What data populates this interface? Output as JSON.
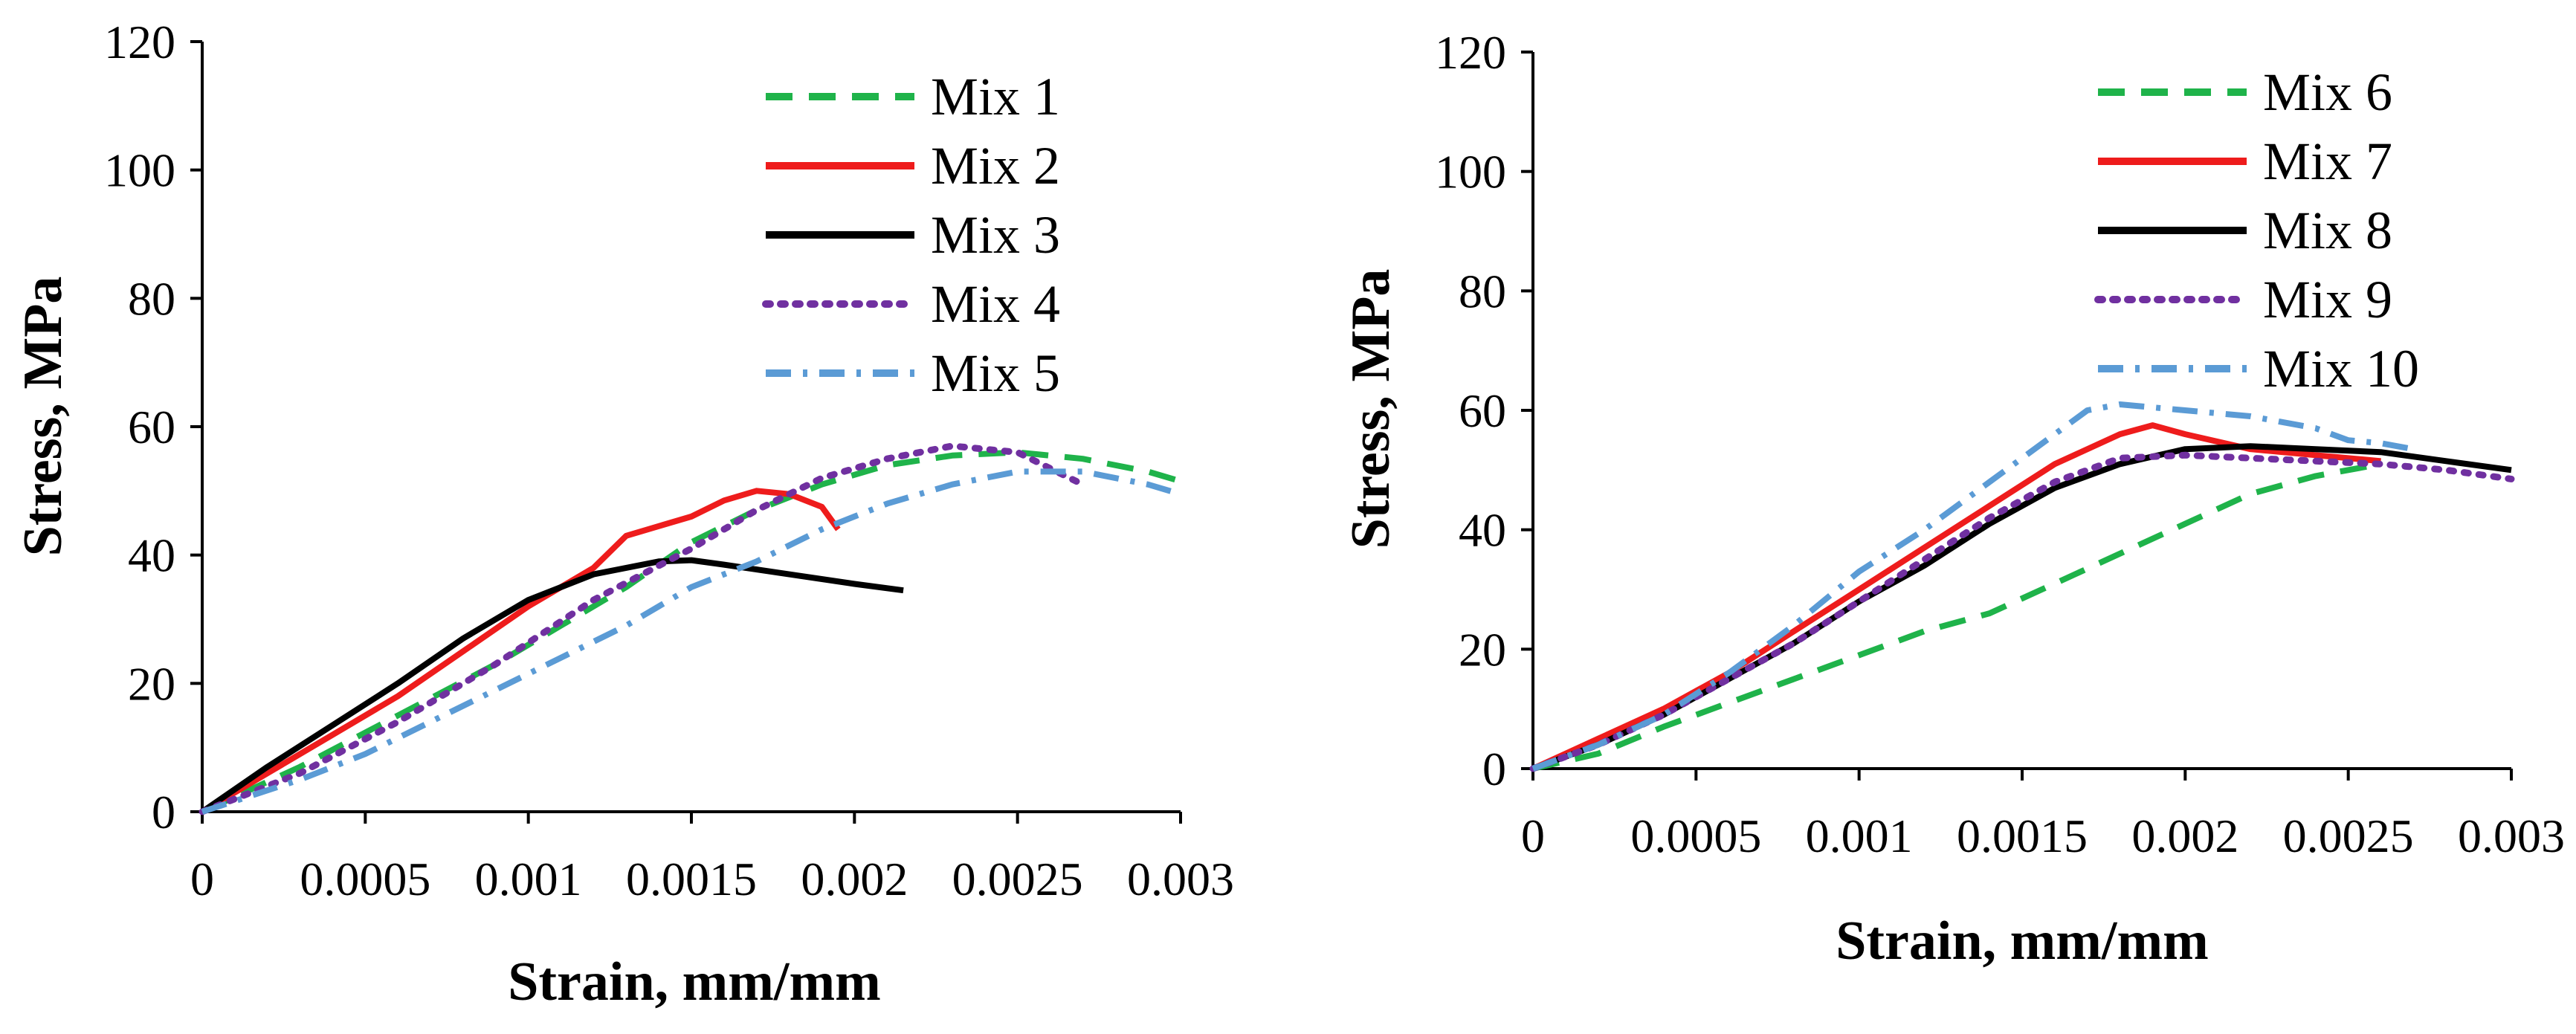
{
  "chart_data": [
    {
      "type": "line",
      "title": "",
      "xlabel": "Strain, mm/mm",
      "ylabel": "Stress, MPa",
      "xlim": [
        0,
        0.003
      ],
      "ylim": [
        0,
        120
      ],
      "xticks": [
        "0",
        "0.0005",
        "0.001",
        "0.0015",
        "0.002",
        "0.0025",
        "0.003"
      ],
      "yticks": [
        "0",
        "20",
        "40",
        "60",
        "80",
        "100",
        "120"
      ],
      "legend_position": "top-right",
      "grid": false,
      "series": [
        {
          "name": "Mix 1",
          "color": "#1fb34a",
          "style": "dashed",
          "x": [
            0,
            0.0003,
            0.0006,
            0.0009,
            0.0011,
            0.0013,
            0.0015,
            0.0017,
            0.0019,
            0.0021,
            0.0023,
            0.0025,
            0.0027,
            0.0029,
            0.003
          ],
          "y": [
            0,
            7,
            15,
            23,
            29,
            35,
            42,
            47,
            51,
            54,
            55.5,
            56,
            55,
            53,
            51.5
          ]
        },
        {
          "name": "Mix 2",
          "color": "#ee1c1c",
          "style": "solid",
          "x": [
            0,
            0.0002,
            0.0004,
            0.0006,
            0.0008,
            0.001,
            0.0012,
            0.0013,
            0.0014,
            0.0015,
            0.0016,
            0.0017,
            0.0018,
            0.0019,
            0.00195
          ],
          "y": [
            0,
            6,
            12,
            18,
            25,
            32,
            38,
            43,
            44.5,
            46,
            48.5,
            50,
            49.5,
            47.5,
            44
          ]
        },
        {
          "name": "Mix 3",
          "color": "#000000",
          "style": "solid",
          "x": [
            0,
            0.0002,
            0.0004,
            0.0006,
            0.0008,
            0.001,
            0.0012,
            0.0014,
            0.0015,
            0.0016,
            0.0018,
            0.002,
            0.00215
          ],
          "y": [
            0,
            7,
            13.5,
            20,
            27,
            33,
            37,
            39,
            39.2,
            38.5,
            37,
            35.5,
            34.5
          ]
        },
        {
          "name": "Mix 4",
          "color": "#7030a0",
          "style": "dotted",
          "x": [
            0,
            0.0003,
            0.0006,
            0.0009,
            0.0012,
            0.0015,
            0.0017,
            0.0019,
            0.0021,
            0.0023,
            0.0025,
            0.0027
          ],
          "y": [
            0,
            6,
            14,
            23,
            33,
            41,
            47,
            52,
            55,
            57,
            56,
            51
          ]
        },
        {
          "name": "Mix 5",
          "color": "#5b9bd5",
          "style": "dashdot",
          "x": [
            0,
            0.0003,
            0.0005,
            0.0007,
            0.0009,
            0.0011,
            0.0013,
            0.0015,
            0.0017,
            0.0019,
            0.0021,
            0.0023,
            0.0025,
            0.0027,
            0.0029,
            0.003
          ],
          "y": [
            0,
            5,
            9,
            14,
            19,
            24,
            29,
            35,
            39,
            44,
            48,
            51,
            53,
            53,
            51,
            49.5
          ]
        }
      ]
    },
    {
      "type": "line",
      "title": "",
      "xlabel": "Strain, mm/mm",
      "ylabel": "Stress, MPa",
      "xlim": [
        0,
        0.003
      ],
      "ylim": [
        0,
        120
      ],
      "xticks": [
        "0",
        "0.0005",
        "0.001",
        "0.0015",
        "0.002",
        "0.0025",
        "0.003"
      ],
      "yticks": [
        "0",
        "20",
        "40",
        "60",
        "80",
        "100",
        "120"
      ],
      "legend_position": "top-right",
      "grid": false,
      "series": [
        {
          "name": "Mix 6",
          "color": "#1fb34a",
          "style": "dashed",
          "x": [
            0,
            0.0002,
            0.0004,
            0.0006,
            0.0008,
            0.001,
            0.0012,
            0.0014,
            0.0016,
            0.0018,
            0.002,
            0.0022,
            0.0024,
            0.0026
          ],
          "y": [
            0,
            2.5,
            7,
            11,
            15,
            19,
            23,
            26,
            31,
            36,
            41,
            46,
            49,
            51
          ]
        },
        {
          "name": "Mix 7",
          "color": "#ee1c1c",
          "style": "solid",
          "x": [
            0,
            0.0002,
            0.0004,
            0.0006,
            0.0008,
            0.001,
            0.0012,
            0.0014,
            0.0016,
            0.0018,
            0.0019,
            0.002,
            0.0022,
            0.0024,
            0.0026
          ],
          "y": [
            0,
            5,
            10,
            16,
            23,
            30,
            37,
            44,
            51,
            56,
            57.5,
            56,
            53.5,
            52.5,
            51.5
          ]
        },
        {
          "name": "Mix 8",
          "color": "#000000",
          "style": "solid",
          "x": [
            0,
            0.0002,
            0.0004,
            0.0006,
            0.0008,
            0.001,
            0.0012,
            0.0014,
            0.0016,
            0.0018,
            0.002,
            0.0022,
            0.0024,
            0.0026,
            0.0028,
            0.003
          ],
          "y": [
            0,
            4,
            9,
            15,
            21,
            28,
            34,
            41,
            47,
            51,
            53.5,
            54,
            53.5,
            53,
            51.5,
            50
          ]
        },
        {
          "name": "Mix 9",
          "color": "#7030a0",
          "style": "dotted",
          "x": [
            0,
            0.0002,
            0.0004,
            0.0006,
            0.0008,
            0.001,
            0.0012,
            0.0014,
            0.0016,
            0.0018,
            0.002,
            0.0022,
            0.0024,
            0.0026,
            0.0028,
            0.003
          ],
          "y": [
            0,
            4,
            9,
            15,
            21,
            28,
            35,
            42,
            48,
            52,
            52.5,
            52,
            51.5,
            51,
            50,
            48.5
          ]
        },
        {
          "name": "Mix 10",
          "color": "#5b9bd5",
          "style": "dashdot",
          "x": [
            0,
            0.0002,
            0.0004,
            0.0006,
            0.0008,
            0.001,
            0.0012,
            0.0014,
            0.0016,
            0.0017,
            0.0018,
            0.002,
            0.0022,
            0.0024,
            0.0025,
            0.0026,
            0.0027
          ],
          "y": [
            0,
            4,
            9,
            16,
            24,
            33,
            40,
            48,
            56,
            60,
            61,
            60,
            59,
            57,
            55,
            54.5,
            53.5
          ]
        }
      ]
    }
  ]
}
